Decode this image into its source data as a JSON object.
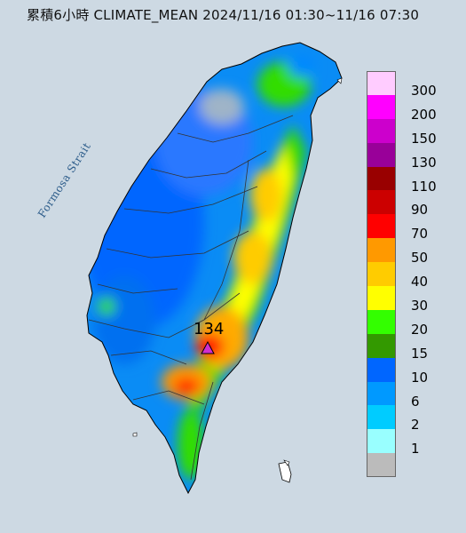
{
  "title": "累積6小時 CLIMATE_MEAN 2024/11/16 01:30~11/16 07:30",
  "water_label": "Formosa Strait",
  "max_station": {
    "value": "134",
    "icon": "triangle-marker-icon",
    "color": "#d02ed0"
  },
  "legend": [
    {
      "label": "300",
      "color": "#ffccff"
    },
    {
      "label": "200",
      "color": "#ff00ff"
    },
    {
      "label": "150",
      "color": "#cc00cc"
    },
    {
      "label": "130",
      "color": "#990099"
    },
    {
      "label": "110",
      "color": "#990000"
    },
    {
      "label": "90",
      "color": "#cc0000"
    },
    {
      "label": "70",
      "color": "#ff0000"
    },
    {
      "label": "50",
      "color": "#ff9900"
    },
    {
      "label": "40",
      "color": "#ffcc00"
    },
    {
      "label": "30",
      "color": "#ffff00"
    },
    {
      "label": "20",
      "color": "#33ff00"
    },
    {
      "label": "15",
      "color": "#339900"
    },
    {
      "label": "10",
      "color": "#0066ff"
    },
    {
      "label": "6",
      "color": "#0099ff"
    },
    {
      "label": "2",
      "color": "#00ccff"
    },
    {
      "label": "1",
      "color": "#99ffff"
    },
    {
      "label": "",
      "color": "#bbbbbb"
    }
  ]
}
